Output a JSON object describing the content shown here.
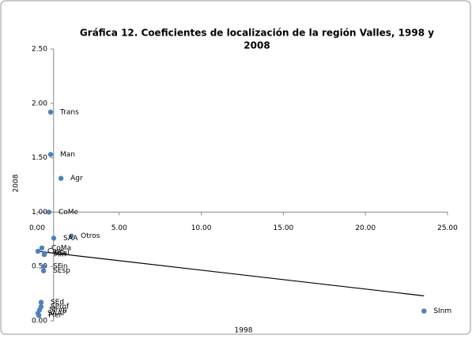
{
  "chart_data": {
    "type": "scatter",
    "title": "Gráfica 12. Coeficientes de localización de la región Valles, 1998 y",
    "title_line2": "2008",
    "x_label": "1998",
    "y_label": "2008",
    "labels": [
      "Trans",
      "Man",
      "Agr",
      "CoMe",
      "Otros",
      "SAA",
      "CoMa",
      "Cons",
      "Min",
      "SSal",
      "SFin",
      "SEsp",
      "SEd",
      "SProf",
      "SInm",
      "SAAP",
      "Pler",
      "SInm"
    ],
    "x": [
      0.82,
      0.82,
      1.45,
      0.72,
      2.08,
      1.01,
      0.29,
      0.05,
      0.43,
      0.45,
      0.39,
      0.39,
      0.24,
      0.24,
      0.15,
      0.05,
      0.1,
      23.57
    ],
    "y": [
      1.92,
      1.53,
      1.31,
      1.0,
      0.78,
      0.76,
      0.67,
      0.64,
      0.61,
      0.62,
      0.5,
      0.46,
      0.17,
      0.13,
      0.1,
      0.07,
      0.05,
      0.09
    ],
    "color": "#4f81bd",
    "trendline": {
      "x": [
        0,
        23.57
      ],
      "y": [
        0.64,
        0.23
      ]
    },
    "xlim": [
      0,
      25
    ],
    "ylim": [
      0,
      2.5
    ],
    "x_axis_at": 1,
    "y_axis_at": 1,
    "xticks": [
      {
        "value": 0,
        "label": "0.00"
      },
      {
        "value": 5,
        "label": "5.00"
      },
      {
        "value": 10,
        "label": "10.00"
      },
      {
        "value": 15,
        "label": "15.00"
      },
      {
        "value": 20,
        "label": "20.00"
      },
      {
        "value": 25,
        "label": "25.00"
      }
    ],
    "yticks": [
      {
        "value": 0,
        "label": "0.00"
      },
      {
        "value": 0.5,
        "label": "0.50"
      },
      {
        "value": 1,
        "label": "1.00"
      },
      {
        "value": 1.5,
        "label": "1.50"
      },
      {
        "value": 2,
        "label": "2.00"
      },
      {
        "value": 2.5,
        "label": "2.50"
      }
    ]
  }
}
